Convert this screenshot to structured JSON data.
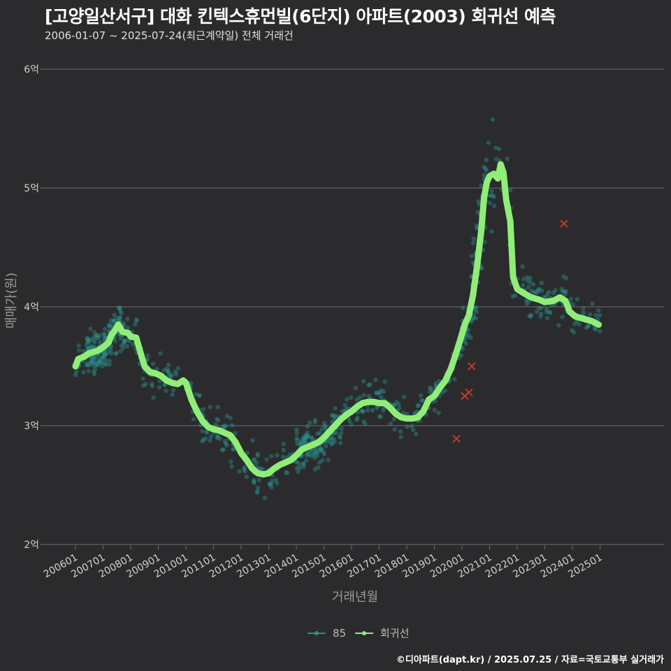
{
  "header": {
    "title": "[고양일산서구] 대화 킨텍스휴먼빌(6단지) 아파트(2003) 회귀선 예측",
    "subtitle": "2006-01-07 ~ 2025-07-24(최근계약일) 전체 거래건"
  },
  "footer": {
    "credit": "©디아파트(dapt.kr) / 2025.07.25 / 자료=국토교통부 실거래가"
  },
  "colors": {
    "background": "#2b2b2d",
    "grid": "#6e6e6e",
    "scatter": "#2a8f8a",
    "regression": "#90ee78",
    "outlier": "#c0392b"
  },
  "chart_data": {
    "type": "scatter",
    "title": "[고양일산서구] 대화 킨텍스휴먼빌(6단지) 아파트(2003) 회귀선 예측",
    "xlabel": "거래년월",
    "ylabel": "매매가(원)",
    "xlim": [
      2005.75,
      2026.5
    ],
    "ylim": [
      1.9,
      6.3
    ],
    "y_ticks": [
      {
        "value": 2,
        "label": "2억"
      },
      {
        "value": 3,
        "label": "3억"
      },
      {
        "value": 4,
        "label": "4억"
      },
      {
        "value": 5,
        "label": "5억"
      },
      {
        "value": 6,
        "label": "6억"
      }
    ],
    "x_ticks": [
      {
        "value": 2006.0,
        "label": "200601"
      },
      {
        "value": 2007.0,
        "label": "200701"
      },
      {
        "value": 2008.0,
        "label": "200801"
      },
      {
        "value": 2009.0,
        "label": "200901"
      },
      {
        "value": 2010.0,
        "label": "201001"
      },
      {
        "value": 2011.0,
        "label": "201101"
      },
      {
        "value": 2012.0,
        "label": "201201"
      },
      {
        "value": 2013.0,
        "label": "201301"
      },
      {
        "value": 2014.0,
        "label": "201401"
      },
      {
        "value": 2015.0,
        "label": "201501"
      },
      {
        "value": 2016.0,
        "label": "201601"
      },
      {
        "value": 2017.0,
        "label": "201701"
      },
      {
        "value": 2018.0,
        "label": "201801"
      },
      {
        "value": 2019.0,
        "label": "201901"
      },
      {
        "value": 2020.0,
        "label": "202001"
      },
      {
        "value": 2021.0,
        "label": "202101"
      },
      {
        "value": 2022.0,
        "label": "202201"
      },
      {
        "value": 2023.0,
        "label": "202301"
      },
      {
        "value": 2024.0,
        "label": "202401"
      },
      {
        "value": 2025.0,
        "label": "202501"
      }
    ],
    "legend": [
      {
        "name": "85",
        "color": "#2a8f8a"
      },
      {
        "name": "회귀선",
        "color": "#90ee78"
      }
    ],
    "regression": [
      [
        2006.0,
        3.5
      ],
      [
        2006.1,
        3.56
      ],
      [
        2006.3,
        3.58
      ],
      [
        2006.5,
        3.61
      ],
      [
        2006.8,
        3.63
      ],
      [
        2007.0,
        3.66
      ],
      [
        2007.2,
        3.7
      ],
      [
        2007.3,
        3.76
      ],
      [
        2007.45,
        3.81
      ],
      [
        2007.55,
        3.85
      ],
      [
        2007.7,
        3.79
      ],
      [
        2007.9,
        3.78
      ],
      [
        2008.0,
        3.75
      ],
      [
        2008.2,
        3.74
      ],
      [
        2008.35,
        3.62
      ],
      [
        2008.5,
        3.5
      ],
      [
        2008.7,
        3.45
      ],
      [
        2008.9,
        3.44
      ],
      [
        2009.1,
        3.42
      ],
      [
        2009.3,
        3.38
      ],
      [
        2009.5,
        3.36
      ],
      [
        2009.7,
        3.35
      ],
      [
        2009.9,
        3.38
      ],
      [
        2010.0,
        3.36
      ],
      [
        2010.2,
        3.22
      ],
      [
        2010.4,
        3.12
      ],
      [
        2010.6,
        3.04
      ],
      [
        2010.8,
        2.99
      ],
      [
        2011.0,
        2.97
      ],
      [
        2011.2,
        2.96
      ],
      [
        2011.4,
        2.94
      ],
      [
        2011.6,
        2.92
      ],
      [
        2011.8,
        2.86
      ],
      [
        2012.0,
        2.77
      ],
      [
        2012.2,
        2.71
      ],
      [
        2012.4,
        2.64
      ],
      [
        2012.6,
        2.6
      ],
      [
        2012.8,
        2.59
      ],
      [
        2013.0,
        2.6
      ],
      [
        2013.2,
        2.64
      ],
      [
        2013.4,
        2.67
      ],
      [
        2013.6,
        2.69
      ],
      [
        2013.8,
        2.71
      ],
      [
        2014.0,
        2.75
      ],
      [
        2014.2,
        2.8
      ],
      [
        2014.4,
        2.82
      ],
      [
        2014.6,
        2.84
      ],
      [
        2014.8,
        2.86
      ],
      [
        2015.0,
        2.9
      ],
      [
        2015.2,
        2.95
      ],
      [
        2015.4,
        3.0
      ],
      [
        2015.6,
        3.05
      ],
      [
        2015.8,
        3.09
      ],
      [
        2016.0,
        3.12
      ],
      [
        2016.2,
        3.16
      ],
      [
        2016.4,
        3.19
      ],
      [
        2016.6,
        3.2
      ],
      [
        2016.8,
        3.2
      ],
      [
        2017.0,
        3.19
      ],
      [
        2017.2,
        3.19
      ],
      [
        2017.4,
        3.15
      ],
      [
        2017.6,
        3.1
      ],
      [
        2017.8,
        3.07
      ],
      [
        2018.0,
        3.06
      ],
      [
        2018.2,
        3.06
      ],
      [
        2018.4,
        3.07
      ],
      [
        2018.6,
        3.12
      ],
      [
        2018.8,
        3.22
      ],
      [
        2019.0,
        3.25
      ],
      [
        2019.2,
        3.32
      ],
      [
        2019.4,
        3.38
      ],
      [
        2019.6,
        3.48
      ],
      [
        2019.8,
        3.62
      ],
      [
        2020.0,
        3.77
      ],
      [
        2020.1,
        3.85
      ],
      [
        2020.25,
        3.93
      ],
      [
        2020.4,
        4.1
      ],
      [
        2020.55,
        4.35
      ],
      [
        2020.7,
        4.65
      ],
      [
        2020.8,
        4.92
      ],
      [
        2020.9,
        5.05
      ],
      [
        2021.0,
        5.1
      ],
      [
        2021.15,
        5.12
      ],
      [
        2021.3,
        5.08
      ],
      [
        2021.4,
        5.2
      ],
      [
        2021.5,
        5.13
      ],
      [
        2021.6,
        4.9
      ],
      [
        2021.75,
        4.72
      ],
      [
        2021.85,
        4.25
      ],
      [
        2022.0,
        4.15
      ],
      [
        2022.2,
        4.12
      ],
      [
        2022.5,
        4.08
      ],
      [
        2022.8,
        4.06
      ],
      [
        2023.0,
        4.04
      ],
      [
        2023.3,
        4.05
      ],
      [
        2023.55,
        4.08
      ],
      [
        2023.75,
        4.05
      ],
      [
        2023.9,
        3.96
      ],
      [
        2024.1,
        3.92
      ],
      [
        2024.4,
        3.9
      ],
      [
        2024.7,
        3.88
      ],
      [
        2024.95,
        3.85
      ]
    ],
    "outliers": [
      [
        2019.8,
        2.89
      ],
      [
        2020.1,
        3.25
      ],
      [
        2020.25,
        3.28
      ],
      [
        2020.35,
        3.5
      ],
      [
        2023.7,
        4.7
      ]
    ],
    "scatter_description": "dense scattered transactions following the regression trend"
  },
  "xaxis": {
    "label": "거래년월"
  },
  "yaxis": {
    "label": "매매가(원)"
  }
}
